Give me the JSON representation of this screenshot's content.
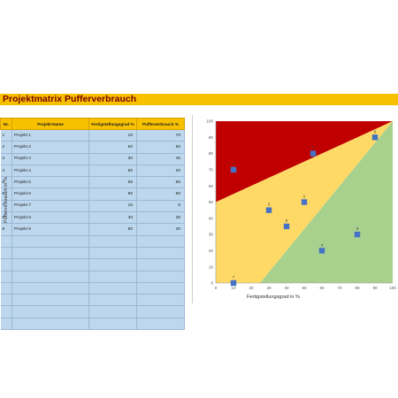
{
  "sheet": {
    "title": "Projektmatrix Pufferverbrauch"
  },
  "table": {
    "headers": [
      "Nr.",
      "Projekt-Name",
      "Fertigstellungsgrad %",
      "Pufferverbrauch %"
    ],
    "rows": [
      {
        "nr": "1",
        "name": "Projekt 1",
        "fertig": "10",
        "puffer": "70"
      },
      {
        "nr": "2",
        "name": "Projekt 2",
        "fertig": "50",
        "puffer": "50"
      },
      {
        "nr": "3",
        "name": "Projekt 3",
        "fertig": "30",
        "puffer": "45"
      },
      {
        "nr": "4",
        "name": "Projekt 4",
        "fertig": "60",
        "puffer": "20"
      },
      {
        "nr": "5",
        "name": "Projekt 5",
        "fertig": "55",
        "puffer": "80"
      },
      {
        "nr": "6",
        "name": "Projekt 6",
        "fertig": "90",
        "puffer": "90"
      },
      {
        "nr": "7",
        "name": "Projekt 7",
        "fertig": "10",
        "puffer": "0"
      },
      {
        "nr": "8",
        "name": "Projekt 8",
        "fertig": "40",
        "puffer": "35"
      },
      {
        "nr": "9",
        "name": "Projekt 9",
        "fertig": "80",
        "puffer": "30"
      },
      {
        "nr": "",
        "name": "",
        "fertig": "",
        "puffer": ""
      },
      {
        "nr": "",
        "name": "",
        "fertig": "",
        "puffer": ""
      },
      {
        "nr": "",
        "name": "",
        "fertig": "",
        "puffer": ""
      },
      {
        "nr": "",
        "name": "",
        "fertig": "",
        "puffer": ""
      },
      {
        "nr": "",
        "name": "",
        "fertig": "",
        "puffer": ""
      },
      {
        "nr": "",
        "name": "",
        "fertig": "",
        "puffer": ""
      },
      {
        "nr": "",
        "name": "",
        "fertig": "",
        "puffer": ""
      },
      {
        "nr": "",
        "name": "",
        "fertig": "",
        "puffer": ""
      }
    ]
  },
  "chart_data": {
    "type": "scatter",
    "xlabel": "Fertigstellungsgrad in %",
    "ylabel": "Pufferverbrauch in %",
    "xlim": [
      0,
      100
    ],
    "ylim": [
      0,
      100
    ],
    "xticks": [
      "0",
      "10",
      "20",
      "30",
      "40",
      "50",
      "60",
      "70",
      "80",
      "90",
      "100"
    ],
    "yticks": [
      "0",
      "10",
      "20",
      "30",
      "40",
      "50",
      "60",
      "70",
      "80",
      "90",
      "100"
    ],
    "grid": false,
    "zones": [
      {
        "name": "red",
        "color": "#c00000",
        "points": [
          [
            0,
            50
          ],
          [
            0,
            100
          ],
          [
            100,
            100
          ]
        ]
      },
      {
        "name": "yellow",
        "color": "#ffd966",
        "points": [
          [
            0,
            0
          ],
          [
            25,
            0
          ],
          [
            100,
            100
          ],
          [
            0,
            50
          ]
        ]
      },
      {
        "name": "green",
        "color": "#a9d18e",
        "points": [
          [
            25,
            0
          ],
          [
            100,
            0
          ],
          [
            100,
            100
          ]
        ]
      }
    ],
    "marker_color": "#4472c4",
    "series": [
      {
        "points": [
          {
            "label": "1",
            "x": 10,
            "y": 70
          },
          {
            "label": "2",
            "x": 50,
            "y": 50
          },
          {
            "label": "3",
            "x": 30,
            "y": 45
          },
          {
            "label": "4",
            "x": 60,
            "y": 20
          },
          {
            "label": "5",
            "x": 55,
            "y": 80
          },
          {
            "label": "6",
            "x": 90,
            "y": 90
          },
          {
            "label": "7",
            "x": 10,
            "y": 0
          },
          {
            "label": "8",
            "x": 40,
            "y": 35
          },
          {
            "label": "9",
            "x": 80,
            "y": 30
          }
        ]
      }
    ]
  }
}
